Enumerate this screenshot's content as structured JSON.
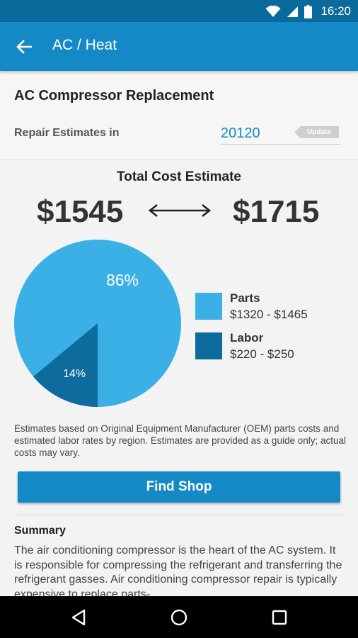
{
  "status_bar": {
    "time": "16:20",
    "icons": [
      "wifi-icon",
      "signal-icon",
      "battery-icon"
    ]
  },
  "app_bar": {
    "title": "AC / Heat",
    "back_icon": "arrow-back-icon"
  },
  "header": {
    "repair_title": "AC Compressor Replacement",
    "estimates_label": "Repair Estimates in",
    "zip_value": "20120",
    "update_label": "Update"
  },
  "estimate": {
    "title": "Total Cost Estimate",
    "low": "$1545",
    "high": "$1715",
    "range_icon": "double-arrow-icon"
  },
  "breakdown": {
    "parts": {
      "percent_label": "86%",
      "percent": 86,
      "name": "Parts",
      "range": "$1320 - $1465",
      "color": "#3ab0e6"
    },
    "labor": {
      "percent_label": "14%",
      "percent": 14,
      "name": "Labor",
      "range": "$220 - $250",
      "color": "#0d6b9e"
    }
  },
  "disclaimer": "Estimates based on Original Equipment Manufacturer (OEM) parts costs and estimated labor rates by region. Estimates are provided as a guide only; actual costs may vary.",
  "find_shop_label": "Find Shop",
  "summary": {
    "title": "Summary",
    "text": "The air conditioning compressor is the heart of the AC system. It is responsible for compressing the refrigerant and transferring the refrigerant gasses. Air conditioning compressor repair is typically expensive to replace parts-"
  },
  "nav_bar": {
    "back": "nav-back-icon",
    "home": "nav-home-icon",
    "recents": "nav-recents-icon"
  },
  "colors": {
    "status_bar": "#0a6a9c",
    "app_bar": "#1489c6",
    "accent": "#1489c6",
    "update_button": "#cfcfcf"
  }
}
